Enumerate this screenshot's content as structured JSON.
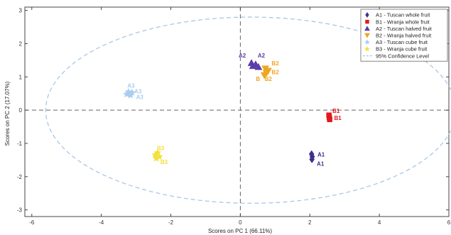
{
  "chart_data": {
    "type": "scatter",
    "xlabel": "Scores on PC 1 (66.11%)",
    "ylabel": "Scores on PC 2 (17.07%)",
    "xlim": [
      -6.2,
      6.0
    ],
    "ylim": [
      -3.2,
      3.1
    ],
    "x_ticks": [
      -6,
      -4,
      -2,
      0,
      2,
      4,
      6
    ],
    "y_ticks": [
      -3,
      -2,
      -1,
      0,
      1,
      2,
      3
    ],
    "reference_lines": {
      "x": 0,
      "y": 0,
      "style": "dashed"
    },
    "confidence_ellipse": {
      "label": "95% Confidence Level",
      "center": [
        0.3,
        0.0
      ],
      "rx": 5.9,
      "ry": 2.8,
      "color": "#a9c7e6"
    },
    "series": [
      {
        "name": "A1 - Tuscan whole fruit",
        "marker": "diamond",
        "color": "#3f2f8c",
        "points": [
          [
            2.05,
            -1.32
          ],
          [
            2.07,
            -1.4
          ],
          [
            2.06,
            -1.48
          ]
        ],
        "labels": [
          {
            "text": "A1",
            "x": 2.22,
            "y": -1.4
          },
          {
            "text": "A1",
            "x": 2.2,
            "y": -1.67
          }
        ]
      },
      {
        "name": "B1 - Wranja whole fruit",
        "marker": "square",
        "color": "#e0191d",
        "points": [
          [
            2.55,
            -0.15
          ],
          [
            2.56,
            -0.22
          ],
          [
            2.57,
            -0.28
          ]
        ],
        "labels": [
          {
            "text": "B1",
            "x": 2.65,
            "y": -0.08
          },
          {
            "text": "B1",
            "x": 2.7,
            "y": -0.3
          }
        ]
      },
      {
        "name": "A2 - Tuscan halved fruit",
        "marker": "triangle-up",
        "color": "#5b3ea8",
        "points": [
          [
            0.32,
            1.42
          ],
          [
            0.36,
            1.33
          ],
          [
            0.44,
            1.38
          ],
          [
            0.52,
            1.3
          ]
        ],
        "labels": [
          {
            "text": "A2",
            "x": -0.05,
            "y": 1.58
          },
          {
            "text": "A2",
            "x": 0.5,
            "y": 1.58
          }
        ]
      },
      {
        "name": "B2 - Wranja halved fruit",
        "marker": "triangle-down",
        "color": "#f0a51f",
        "points": [
          [
            0.72,
            1.25
          ],
          [
            0.75,
            1.12
          ],
          [
            0.69,
            1.05
          ],
          [
            0.8,
            1.18
          ]
        ],
        "labels": [
          {
            "text": "B2",
            "x": 0.9,
            "y": 1.35
          },
          {
            "text": "B2",
            "x": 0.9,
            "y": 1.08
          },
          {
            "text": "B",
            "x": 0.45,
            "y": 0.88
          },
          {
            "text": "B2",
            "x": 0.7,
            "y": 0.88
          }
        ]
      },
      {
        "name": "A3 - Tuscan cube fruit",
        "marker": "star",
        "color": "#a9cdef",
        "points": [
          [
            -3.27,
            0.48
          ],
          [
            -3.16,
            0.45
          ],
          [
            -3.22,
            0.55
          ],
          [
            -3.12,
            0.53
          ]
        ],
        "labels": [
          {
            "text": "A3",
            "x": -3.25,
            "y": 0.68
          },
          {
            "text": "A3",
            "x": -3.05,
            "y": 0.5
          },
          {
            "text": "A3",
            "x": -3.0,
            "y": 0.33
          }
        ]
      },
      {
        "name": "B3 - Wranja cube fruit",
        "marker": "star",
        "color": "#f2e13c",
        "points": [
          [
            -2.45,
            -1.35
          ],
          [
            -2.38,
            -1.28
          ],
          [
            -2.42,
            -1.45
          ],
          [
            -2.33,
            -1.4
          ]
        ],
        "labels": [
          {
            "text": "B3",
            "x": -2.4,
            "y": -1.2
          },
          {
            "text": "B3",
            "x": -2.3,
            "y": -1.62
          }
        ]
      }
    ],
    "legend": {
      "position": "top-right",
      "entries": [
        "A1 - Tuscan whole fruit",
        "B1 - Wranja whole fruit",
        "A2 - Tuscan halved fruit",
        "B2 - Wranja halved fruit",
        "A3 - Tuscan cube fruit",
        "B3 - Wranja cube fruit",
        "95% Confidence Level"
      ]
    }
  }
}
